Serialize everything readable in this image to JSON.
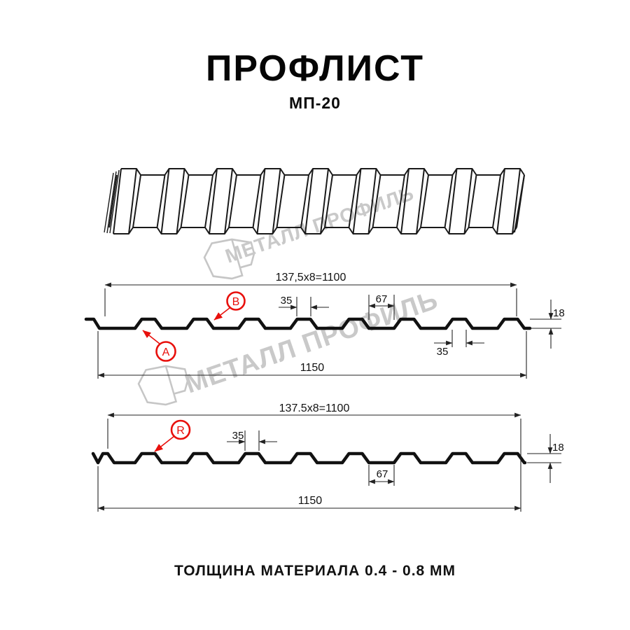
{
  "page": {
    "title": "ПРОФЛИСТ",
    "subtitle": "МП-20",
    "thickness_note": "ТОЛЩИНА МАТЕРИАЛА 0.4 - 0.8 ММ"
  },
  "watermark": {
    "brand": "МЕТАЛЛ ПРОФИЛЬ"
  },
  "colors": {
    "accent_red": "#e8100c",
    "watermark_gray": "#c9c9c9",
    "line_black": "#1a1a1a"
  },
  "section1": {
    "width_working": "137,5x8=1100",
    "rib_top_width": "35",
    "valley_width": "67",
    "rib_bottom_width": "35",
    "height": "18",
    "width_total": "1150",
    "label_a": "A",
    "label_b": "B"
  },
  "section2": {
    "width_working": "137.5x8=1100",
    "rib_top_width": "35",
    "valley_width": "67",
    "height": "18",
    "width_total": "1150",
    "label_r": "R"
  }
}
